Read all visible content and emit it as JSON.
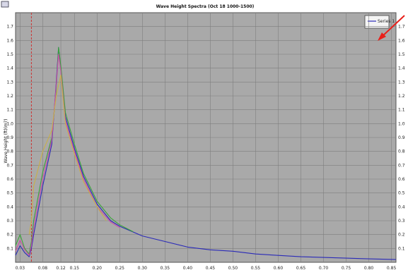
{
  "chart_data": {
    "type": "line",
    "title": "Wave Height Spectra (Oct 18 1000-1500)",
    "ylabel": "Wave Height (ft)(m?)",
    "y2label": "",
    "xlim": [
      0.02,
      0.86
    ],
    "ylim": [
      0,
      1.8
    ],
    "grid": true,
    "x_ticks": [
      "0.03",
      "0.08",
      "0.12",
      "0.15",
      "0.20",
      "0.25",
      "0.30",
      "0.35",
      "0.40",
      "0.45",
      "0.50",
      "0.55",
      "0.60",
      "0.65",
      "0.70",
      "0.75",
      "0.80",
      "0.85"
    ],
    "y_ticks": [
      "0.1",
      "0.2",
      "0.3",
      "0.4",
      "0.5",
      "0.6",
      "0.7",
      "0.8",
      "0.9",
      "1.0",
      "1.1",
      "1.2",
      "1.3",
      "1.4",
      "1.5",
      "1.6",
      "1.7"
    ],
    "legend": {
      "entries": [
        "Series 1"
      ],
      "placement": "top-right"
    },
    "markers": [
      {
        "label": "",
        "x": 0.055,
        "color": "#cc3333"
      }
    ],
    "series": [
      {
        "name": "",
        "color": "#2a2ab8",
        "x": [
          0.02,
          0.03,
          0.04,
          0.05,
          0.055,
          0.06,
          0.08,
          0.1,
          0.11,
          0.115,
          0.12,
          0.13,
          0.15,
          0.17,
          0.2,
          0.23,
          0.25,
          0.3,
          0.35,
          0.4,
          0.45,
          0.5,
          0.55,
          0.6,
          0.65,
          0.7,
          0.75,
          0.8,
          0.86
        ],
        "y": [
          0.05,
          0.12,
          0.07,
          0.04,
          0.1,
          0.2,
          0.55,
          0.85,
          1.3,
          1.55,
          1.4,
          1.05,
          0.82,
          0.62,
          0.42,
          0.3,
          0.26,
          0.19,
          0.15,
          0.11,
          0.09,
          0.08,
          0.06,
          0.05,
          0.04,
          0.035,
          0.03,
          0.025,
          0.02
        ]
      },
      {
        "name": "",
        "color": "#3aa53a",
        "x": [
          0.02,
          0.03,
          0.04,
          0.05,
          0.055,
          0.06,
          0.08,
          0.1,
          0.11,
          0.115,
          0.12,
          0.13,
          0.15,
          0.17,
          0.2,
          0.23,
          0.25,
          0.28
        ],
        "y": [
          0.12,
          0.2,
          0.1,
          0.06,
          0.15,
          0.3,
          0.65,
          0.9,
          1.25,
          1.55,
          1.42,
          1.08,
          0.85,
          0.64,
          0.44,
          0.32,
          0.27,
          0.22
        ]
      },
      {
        "name": "",
        "color": "#cc4fa8",
        "x": [
          0.02,
          0.03,
          0.04,
          0.05,
          0.055,
          0.06,
          0.08,
          0.1,
          0.11,
          0.115,
          0.12,
          0.13,
          0.15,
          0.17,
          0.2,
          0.23,
          0.25
        ],
        "y": [
          0.08,
          0.16,
          0.09,
          0.05,
          0.12,
          0.25,
          0.6,
          0.88,
          1.28,
          1.5,
          1.38,
          1.02,
          0.8,
          0.6,
          0.4,
          0.29,
          0.25
        ]
      },
      {
        "name": "",
        "color": "#c8b04a",
        "x": [
          0.05,
          0.055,
          0.06,
          0.08,
          0.1,
          0.11,
          0.12,
          0.13,
          0.15,
          0.17,
          0.2,
          0.22
        ],
        "y": [
          0.2,
          0.3,
          0.55,
          0.8,
          0.95,
          1.2,
          1.35,
          1.0,
          0.78,
          0.58,
          0.4,
          0.3
        ]
      }
    ]
  },
  "annotations": {
    "arrow_color": "#e8201a"
  }
}
